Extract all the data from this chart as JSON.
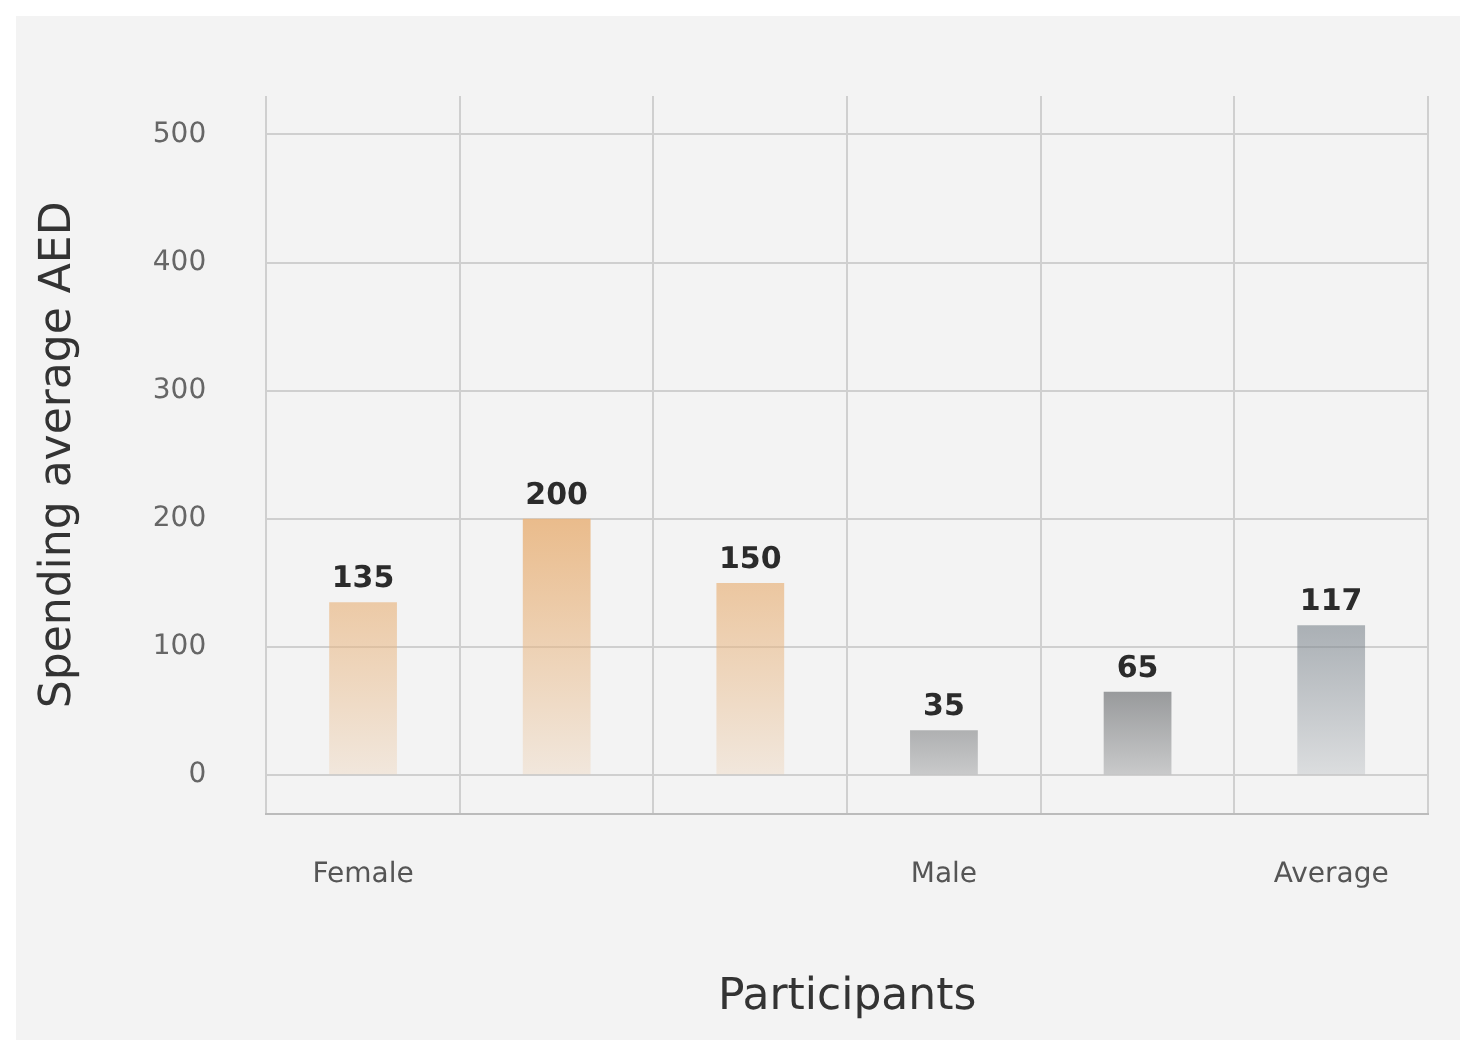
{
  "chart_data": {
    "type": "bar",
    "xlabel": "Participants",
    "ylabel": "Spending average AED",
    "categories": [
      "Female",
      null,
      null,
      "Male",
      null,
      "Average"
    ],
    "values": [
      135,
      200,
      150,
      35,
      65,
      117
    ],
    "colors": [
      "#e9b783",
      "#e9b783",
      "#e9b783",
      "#23272b",
      "#23272b",
      "#7e878f"
    ],
    "ylim": [
      -30,
      530
    ],
    "yticks": [
      0,
      100,
      200,
      300,
      400,
      500
    ],
    "grid": true,
    "data_labels": true,
    "legend": false
  }
}
